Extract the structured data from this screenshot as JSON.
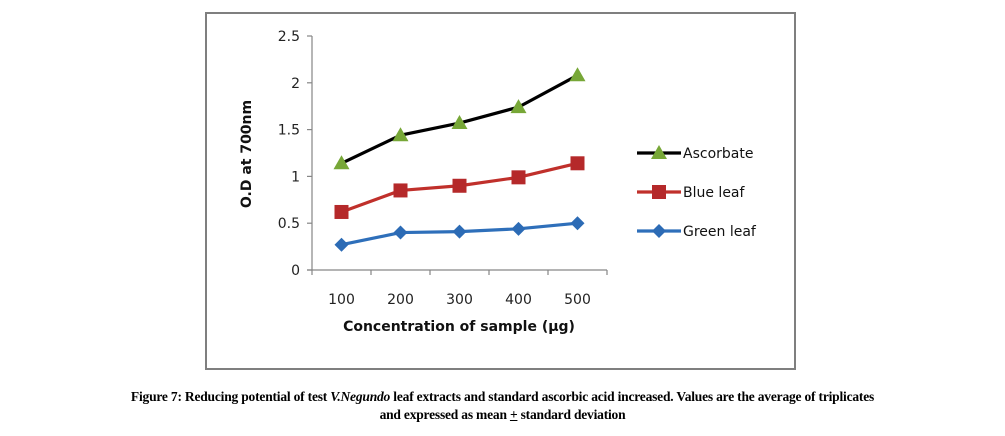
{
  "chart_data": {
    "type": "line",
    "title": "",
    "xlabel": "Concentration of sample  (µg)",
    "ylabel": "O.D at 700nm",
    "categories": [
      "100",
      "200",
      "300",
      "400",
      "500"
    ],
    "ylim": [
      0,
      2.5
    ],
    "yticks": [
      "0",
      "0.5",
      "1",
      "1.5",
      "2",
      "2.5"
    ],
    "ytick_values": [
      0,
      0.5,
      1,
      1.5,
      2,
      2.5
    ],
    "grid": false,
    "legend_position": "right",
    "series": [
      {
        "name": "Ascorbate",
        "values": [
          1.14,
          1.44,
          1.57,
          1.74,
          2.08
        ],
        "line_color": "#000000",
        "marker": "triangle",
        "marker_color": "#77a737"
      },
      {
        "name": "Blue leaf",
        "values": [
          0.62,
          0.85,
          0.9,
          0.99,
          1.14
        ],
        "line_color": "#c0302b",
        "marker": "square",
        "marker_color": "#b5292a"
      },
      {
        "name": "Green leaf",
        "values": [
          0.27,
          0.4,
          0.41,
          0.44,
          0.5
        ],
        "line_color": "#2e6fba",
        "marker": "diamond",
        "marker_color": "#2c6bb5"
      }
    ]
  },
  "caption": {
    "prefix": "Figure 7: Reducing potential of test ",
    "species": "V.Negundo",
    "middle": " leaf extracts and standard ascorbic acid increased. Values are the average of triplicates",
    "line2_start": "and expressed as mean ",
    "pm_symbol": "+",
    "line2_end": " standard deviation"
  }
}
